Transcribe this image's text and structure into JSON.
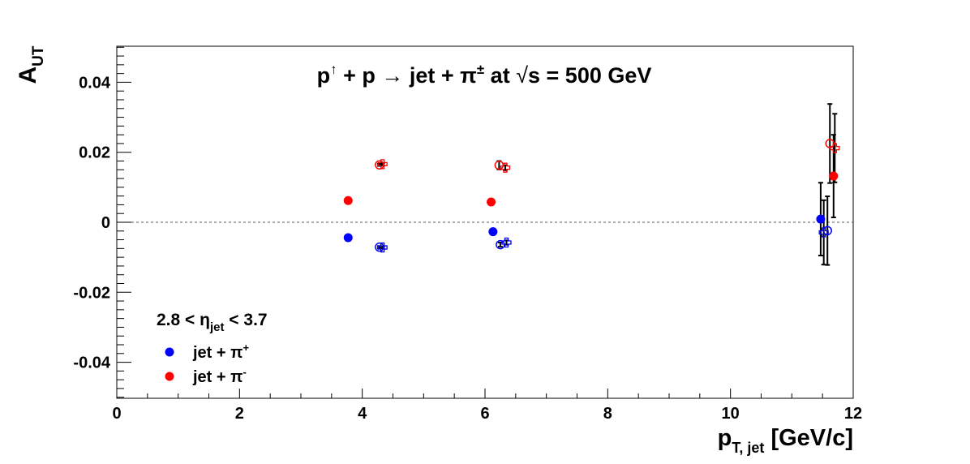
{
  "chart_data": {
    "type": "scatter",
    "title": {
      "p_up": "p",
      "arrow_up": "↑",
      "plus_p": " + p ",
      "rarrow": "→",
      "jet_pi": " jet + π",
      "pm": "±",
      "at": " at ",
      "sqrt": "√",
      "s_eq": "s = 500 GeV"
    },
    "ylabel": {
      "main": "A",
      "sub": "UT"
    },
    "xlabel": {
      "main": "p",
      "sub": "T, jet",
      "units": " [GeV/c]"
    },
    "eta_label": {
      "pre": "2.8 < η",
      "sub": "jet",
      "post": " < 3.7"
    },
    "xlim": [
      0,
      12
    ],
    "ylim": [
      -0.05,
      0.05
    ],
    "x_ticks": [
      0,
      2,
      4,
      6,
      8,
      10,
      12
    ],
    "x_tick_labels": [
      "0",
      "2",
      "4",
      "6",
      "8",
      "10",
      "12"
    ],
    "y_ticks": [
      -0.04,
      -0.02,
      0,
      0.02,
      0.04
    ],
    "y_tick_labels": [
      "-0.04",
      "-0.02",
      "0",
      "0.02",
      "0.04"
    ],
    "zero_line": true,
    "legend": {
      "placement": "bottom-left",
      "items": [
        {
          "label": "jet + π",
          "sup": "+",
          "color": "#0000ff"
        },
        {
          "label": "jet + π",
          "sup": "-",
          "color": "#ff0000"
        }
      ]
    },
    "series": [
      {
        "marker": "filled-circle",
        "color": "#0000ff",
        "points": [
          {
            "x": 3.77,
            "y": -0.0044,
            "err": 0.0003
          },
          {
            "x": 6.13,
            "y": -0.0027,
            "err": 0.0006
          },
          {
            "x": 11.47,
            "y": 0.0009,
            "err": 0.0104
          }
        ]
      },
      {
        "marker": "filled-circle",
        "color": "#ff0000",
        "points": [
          {
            "x": 3.77,
            "y": 0.0062,
            "err": 0.0003
          },
          {
            "x": 6.1,
            "y": 0.0058,
            "err": 0.0007
          },
          {
            "x": 11.68,
            "y": 0.0132,
            "err": 0.0118
          }
        ]
      },
      {
        "marker": "open-circle",
        "color": "#0000ff",
        "points": [
          {
            "x": 4.28,
            "y": -0.0071,
            "err": 0.0003
          },
          {
            "x": 6.25,
            "y": -0.0064,
            "err": 0.0006
          },
          {
            "x": 11.58,
            "y": -0.0024,
            "err": 0.0098
          }
        ]
      },
      {
        "marker": "open-cross",
        "color": "#0000ff",
        "points": [
          {
            "x": 4.33,
            "y": -0.0072,
            "err": 0.0003
          },
          {
            "x": 6.35,
            "y": -0.0058,
            "err": 0.0006
          },
          {
            "x": 11.52,
            "y": -0.0029,
            "err": 0.0092
          }
        ]
      },
      {
        "marker": "open-circle",
        "color": "#ff0000",
        "points": [
          {
            "x": 4.28,
            "y": 0.0164,
            "err": 0.0003
          },
          {
            "x": 6.23,
            "y": 0.0163,
            "err": 0.0012
          },
          {
            "x": 11.62,
            "y": 0.0225,
            "err": 0.0113
          }
        ]
      },
      {
        "marker": "open-cross",
        "color": "#ff0000",
        "points": [
          {
            "x": 4.33,
            "y": 0.0166,
            "err": 0.0003
          },
          {
            "x": 6.33,
            "y": 0.0156,
            "err": 0.0007
          },
          {
            "x": 11.7,
            "y": 0.0212,
            "err": 0.0098
          }
        ]
      }
    ]
  }
}
